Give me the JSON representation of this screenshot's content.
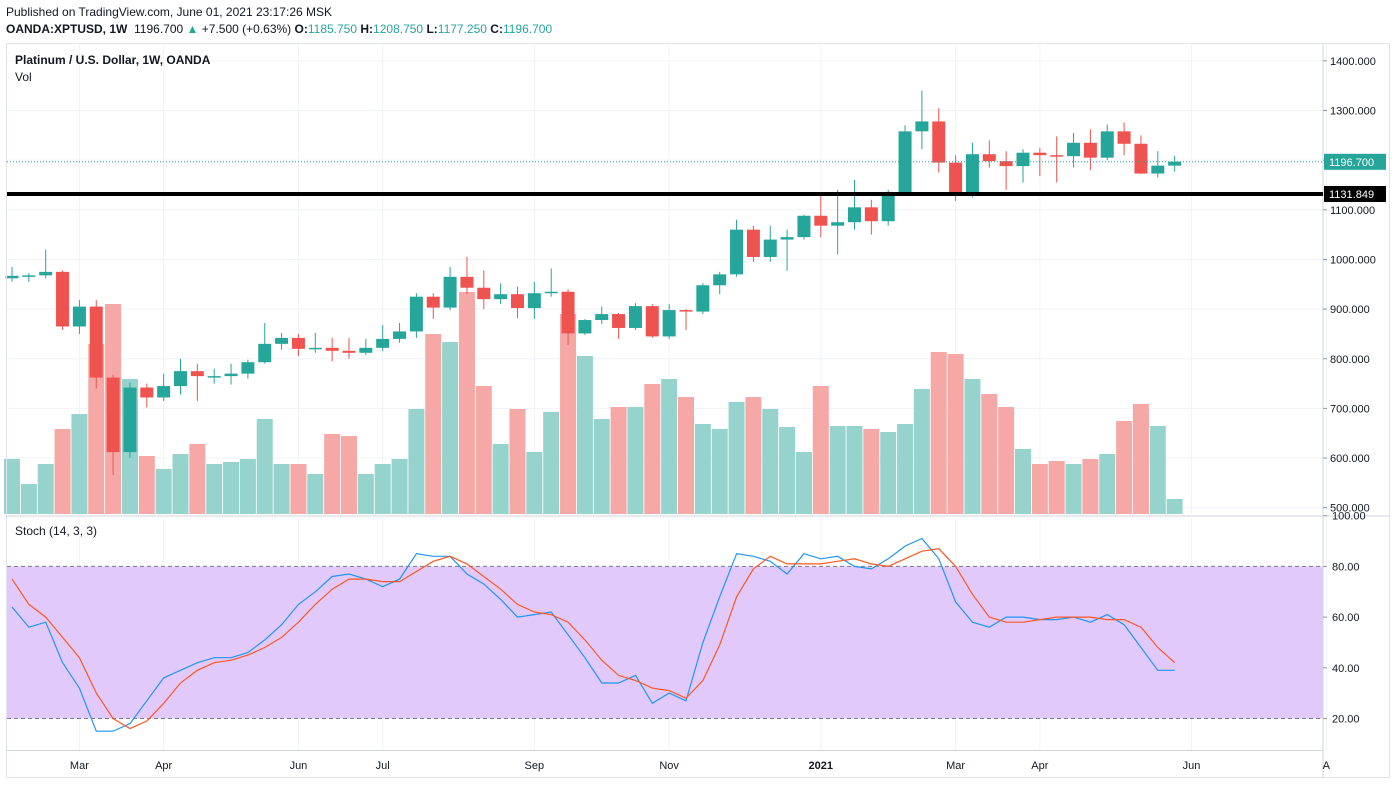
{
  "header": {
    "published": "Published on TradingView.com, June 01, 2021 23:17:26 MSK",
    "symbol": "OANDA:XPTUSD, 1W",
    "last": "1196.700",
    "arrow": "▲",
    "change": "+7.500 (+0.63%)",
    "o_label": "O:",
    "o_value": "1185.750",
    "h_label": "H:",
    "h_value": "1208.750",
    "l_label": "L:",
    "l_value": "1177.250",
    "c_label": "C:",
    "c_value": "1196.700"
  },
  "legend": {
    "title": "Platinum / U.S. Dollar, 1W, OANDA",
    "volume": "Vol",
    "stoch": "Stoch (14, 3, 3)"
  },
  "price_badge": "1196.700",
  "level_badge": "1131.849",
  "colors": {
    "up": "#26a69a",
    "down": "#ef5350",
    "vol_up": "#97d3cd",
    "vol_down": "#f6a8a6",
    "k_line": "#2196f3",
    "d_line": "#ff5722",
    "stoch_band": "#e1c9fb",
    "level": "#000000"
  },
  "chart_data": [
    {
      "type": "candlestick",
      "title": "Platinum / U.S. Dollar, 1W, OANDA",
      "y_ticks": [
        "1400.000",
        "1300.000",
        "1200.000",
        "1100.000",
        "1000.000",
        "900.000",
        "800.000",
        "700.000",
        "600.000",
        "500.000"
      ],
      "x_ticks": [
        {
          "label": "Mar",
          "week": 4
        },
        {
          "label": "Apr",
          "week": 9
        },
        {
          "label": "Jun",
          "week": 17
        },
        {
          "label": "Jul",
          "week": 22
        },
        {
          "label": "Sep",
          "week": 31
        },
        {
          "label": "Nov",
          "week": 39
        },
        {
          "label": "2021",
          "week": 48
        },
        {
          "label": "Mar",
          "week": 56
        },
        {
          "label": "Apr",
          "week": 61
        },
        {
          "label": "Jun",
          "week": 70
        },
        {
          "label": "A",
          "week": 78
        }
      ],
      "last_price": 1196.7,
      "horizontal_level": 1131.849,
      "candles": [
        {
          "o": 962,
          "h": 985,
          "l": 955,
          "c": 967
        },
        {
          "o": 965,
          "h": 972,
          "l": 955,
          "c": 968
        },
        {
          "o": 968,
          "h": 1020,
          "l": 962,
          "c": 975
        },
        {
          "o": 975,
          "h": 978,
          "l": 858,
          "c": 865
        },
        {
          "o": 865,
          "h": 918,
          "l": 850,
          "c": 905
        },
        {
          "o": 905,
          "h": 918,
          "l": 740,
          "c": 762
        },
        {
          "o": 762,
          "h": 768,
          "l": 566,
          "c": 612
        },
        {
          "o": 612,
          "h": 752,
          "l": 600,
          "c": 742
        },
        {
          "o": 742,
          "h": 750,
          "l": 702,
          "c": 722
        },
        {
          "o": 722,
          "h": 770,
          "l": 715,
          "c": 745
        },
        {
          "o": 745,
          "h": 800,
          "l": 728,
          "c": 775
        },
        {
          "o": 775,
          "h": 790,
          "l": 715,
          "c": 765
        },
        {
          "o": 765,
          "h": 780,
          "l": 750,
          "c": 765
        },
        {
          "o": 765,
          "h": 790,
          "l": 748,
          "c": 770
        },
        {
          "o": 770,
          "h": 798,
          "l": 760,
          "c": 793
        },
        {
          "o": 793,
          "h": 872,
          "l": 790,
          "c": 830
        },
        {
          "o": 830,
          "h": 852,
          "l": 818,
          "c": 842
        },
        {
          "o": 842,
          "h": 850,
          "l": 805,
          "c": 820
        },
        {
          "o": 820,
          "h": 852,
          "l": 812,
          "c": 822
        },
        {
          "o": 822,
          "h": 842,
          "l": 795,
          "c": 816
        },
        {
          "o": 816,
          "h": 842,
          "l": 800,
          "c": 812
        },
        {
          "o": 812,
          "h": 840,
          "l": 808,
          "c": 822
        },
        {
          "o": 822,
          "h": 868,
          "l": 815,
          "c": 840
        },
        {
          "o": 840,
          "h": 872,
          "l": 832,
          "c": 855
        },
        {
          "o": 855,
          "h": 932,
          "l": 842,
          "c": 925
        },
        {
          "o": 925,
          "h": 932,
          "l": 880,
          "c": 903
        },
        {
          "o": 903,
          "h": 985,
          "l": 898,
          "c": 965
        },
        {
          "o": 965,
          "h": 1005,
          "l": 930,
          "c": 943
        },
        {
          "o": 943,
          "h": 978,
          "l": 900,
          "c": 920
        },
        {
          "o": 920,
          "h": 952,
          "l": 910,
          "c": 930
        },
        {
          "o": 930,
          "h": 945,
          "l": 882,
          "c": 902
        },
        {
          "o": 902,
          "h": 955,
          "l": 880,
          "c": 932
        },
        {
          "o": 932,
          "h": 982,
          "l": 925,
          "c": 935
        },
        {
          "o": 935,
          "h": 940,
          "l": 828,
          "c": 851
        },
        {
          "o": 851,
          "h": 880,
          "l": 848,
          "c": 878
        },
        {
          "o": 878,
          "h": 905,
          "l": 870,
          "c": 890
        },
        {
          "o": 890,
          "h": 892,
          "l": 840,
          "c": 862
        },
        {
          "o": 862,
          "h": 912,
          "l": 858,
          "c": 906
        },
        {
          "o": 906,
          "h": 910,
          "l": 842,
          "c": 845
        },
        {
          "o": 845,
          "h": 910,
          "l": 840,
          "c": 898
        },
        {
          "o": 898,
          "h": 900,
          "l": 858,
          "c": 895
        },
        {
          "o": 895,
          "h": 952,
          "l": 890,
          "c": 948
        },
        {
          "o": 948,
          "h": 975,
          "l": 930,
          "c": 970
        },
        {
          "o": 970,
          "h": 1080,
          "l": 965,
          "c": 1060
        },
        {
          "o": 1060,
          "h": 1068,
          "l": 995,
          "c": 1005
        },
        {
          "o": 1005,
          "h": 1068,
          "l": 995,
          "c": 1040
        },
        {
          "o": 1040,
          "h": 1060,
          "l": 977,
          "c": 1045
        },
        {
          "o": 1045,
          "h": 1090,
          "l": 1040,
          "c": 1088
        },
        {
          "o": 1088,
          "h": 1130,
          "l": 1045,
          "c": 1068
        },
        {
          "o": 1068,
          "h": 1140,
          "l": 1010,
          "c": 1075
        },
        {
          "o": 1075,
          "h": 1160,
          "l": 1060,
          "c": 1105
        },
        {
          "o": 1105,
          "h": 1120,
          "l": 1050,
          "c": 1077
        },
        {
          "o": 1077,
          "h": 1140,
          "l": 1068,
          "c": 1135
        },
        {
          "o": 1135,
          "h": 1270,
          "l": 1130,
          "c": 1258
        },
        {
          "o": 1258,
          "h": 1340,
          "l": 1222,
          "c": 1278
        },
        {
          "o": 1278,
          "h": 1305,
          "l": 1175,
          "c": 1195
        },
        {
          "o": 1195,
          "h": 1210,
          "l": 1118,
          "c": 1133
        },
        {
          "o": 1133,
          "h": 1235,
          "l": 1125,
          "c": 1212
        },
        {
          "o": 1212,
          "h": 1240,
          "l": 1185,
          "c": 1198
        },
        {
          "o": 1198,
          "h": 1218,
          "l": 1140,
          "c": 1188
        },
        {
          "o": 1188,
          "h": 1222,
          "l": 1155,
          "c": 1215
        },
        {
          "o": 1215,
          "h": 1225,
          "l": 1168,
          "c": 1210
        },
        {
          "o": 1210,
          "h": 1248,
          "l": 1155,
          "c": 1208
        },
        {
          "o": 1208,
          "h": 1255,
          "l": 1185,
          "c": 1235
        },
        {
          "o": 1235,
          "h": 1262,
          "l": 1180,
          "c": 1205
        },
        {
          "o": 1205,
          "h": 1272,
          "l": 1200,
          "c": 1258
        },
        {
          "o": 1258,
          "h": 1276,
          "l": 1210,
          "c": 1233
        },
        {
          "o": 1233,
          "h": 1250,
          "l": 1172,
          "c": 1173
        },
        {
          "o": 1173,
          "h": 1218,
          "l": 1165,
          "c": 1189
        },
        {
          "o": 1189,
          "h": 1209,
          "l": 1177,
          "c": 1197
        }
      ]
    },
    {
      "type": "bar",
      "title": "Vol",
      "values": [
        55,
        30,
        50,
        85,
        100,
        170,
        210,
        135,
        58,
        45,
        60,
        70,
        50,
        52,
        55,
        95,
        50,
        50,
        40,
        80,
        78,
        40,
        50,
        55,
        105,
        180,
        172,
        222,
        128,
        70,
        105,
        62,
        102,
        200,
        158,
        95,
        107,
        107,
        130,
        135,
        117,
        90,
        85,
        112,
        117,
        105,
        87,
        62,
        128,
        88,
        88,
        85,
        82,
        90,
        125,
        162,
        160,
        135,
        120,
        107,
        65,
        50,
        53,
        50,
        55,
        60,
        93,
        110,
        88,
        15
      ]
    },
    {
      "type": "line",
      "title": "Stoch (14, 3, 3)",
      "y_ticks": [
        "100.00",
        "80.00",
        "60.00",
        "40.00",
        "20.00"
      ],
      "bands": [
        20,
        80
      ],
      "series": [
        {
          "values": [
            64,
            56,
            58,
            42,
            32,
            15,
            15,
            18,
            27,
            36,
            39,
            42,
            44,
            44,
            46,
            51,
            57,
            65,
            70,
            76,
            77,
            75,
            72,
            75,
            85,
            84,
            84,
            77,
            73,
            67,
            60,
            61,
            62,
            53,
            44,
            34,
            34,
            37,
            26,
            30,
            27,
            50,
            68,
            85,
            84,
            82,
            77,
            85,
            83,
            84,
            80,
            79,
            83,
            88,
            91,
            83,
            66,
            58,
            56,
            60,
            60,
            59,
            59,
            60,
            58,
            61,
            57,
            48,
            39,
            39
          ]
        },
        {
          "values": [
            75,
            65,
            60,
            52,
            44,
            30,
            20,
            16,
            19,
            26,
            34,
            39,
            42,
            43,
            45,
            48,
            52,
            58,
            65,
            71,
            75,
            75,
            74,
            74,
            78,
            82,
            84,
            81,
            76,
            71,
            65,
            62,
            61,
            58,
            51,
            43,
            37,
            35,
            32,
            31,
            28,
            35,
            49,
            68,
            79,
            84,
            81,
            81,
            81,
            82,
            83,
            81,
            80,
            83,
            86,
            87,
            80,
            69,
            60,
            58,
            58,
            59,
            60,
            60,
            60,
            59,
            59,
            56,
            48,
            42
          ]
        }
      ]
    }
  ]
}
